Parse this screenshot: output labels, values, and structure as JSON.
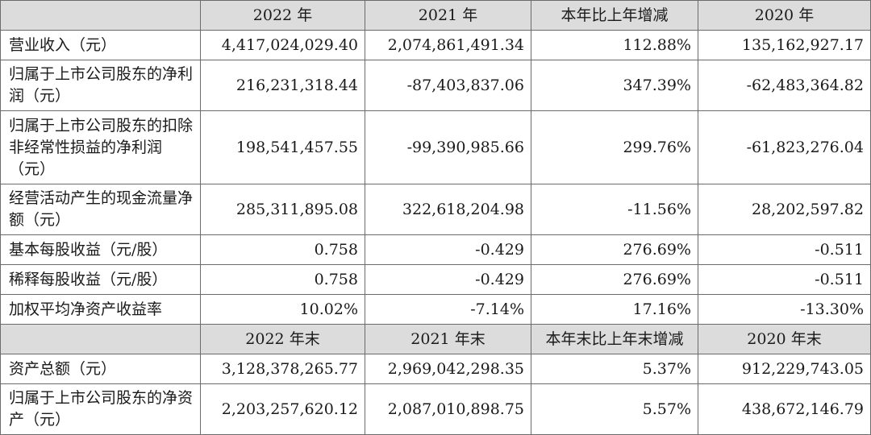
{
  "header1": [
    "",
    "2022 年",
    "2021 年",
    "本年比上年增减",
    "2020 年"
  ],
  "rows1": [
    {
      "label": "营业收入（元）",
      "v": [
        "4,417,024,029.40",
        "2,074,861,491.34",
        "112.88%",
        "135,162,927.17"
      ]
    },
    {
      "label": "归属于上市公司股东的净利润（元）",
      "v": [
        "216,231,318.44",
        "-87,403,837.06",
        "347.39%",
        "-62,483,364.82"
      ]
    },
    {
      "label": "归属于上市公司股东的扣除非经常性损益的净利润（元）",
      "v": [
        "198,541,457.55",
        "-99,390,985.66",
        "299.76%",
        "-61,823,276.04"
      ]
    },
    {
      "label": "经营活动产生的现金流量净额（元）",
      "v": [
        "285,311,895.08",
        "322,618,204.98",
        "-11.56%",
        "28,202,597.82"
      ]
    },
    {
      "label": "基本每股收益（元/股）",
      "v": [
        "0.758",
        "-0.429",
        "276.69%",
        "-0.511"
      ]
    },
    {
      "label": "稀释每股收益（元/股）",
      "v": [
        "0.758",
        "-0.429",
        "276.69%",
        "-0.511"
      ]
    },
    {
      "label": "加权平均净资产收益率",
      "v": [
        "10.02%",
        "-7.14%",
        "17.16%",
        "-13.30%"
      ]
    }
  ],
  "header2": [
    "",
    "2022 年末",
    "2021 年末",
    "本年末比上年末增减",
    "2020 年末"
  ],
  "rows2": [
    {
      "label": "资产总额（元）",
      "v": [
        "3,128,378,265.77",
        "2,969,042,298.35",
        "5.37%",
        "912,229,743.05"
      ]
    },
    {
      "label": "归属于上市公司股东的净资产（元）",
      "v": [
        "2,203,257,620.12",
        "2,087,010,898.75",
        "5.57%",
        "438,672,146.79"
      ]
    }
  ]
}
